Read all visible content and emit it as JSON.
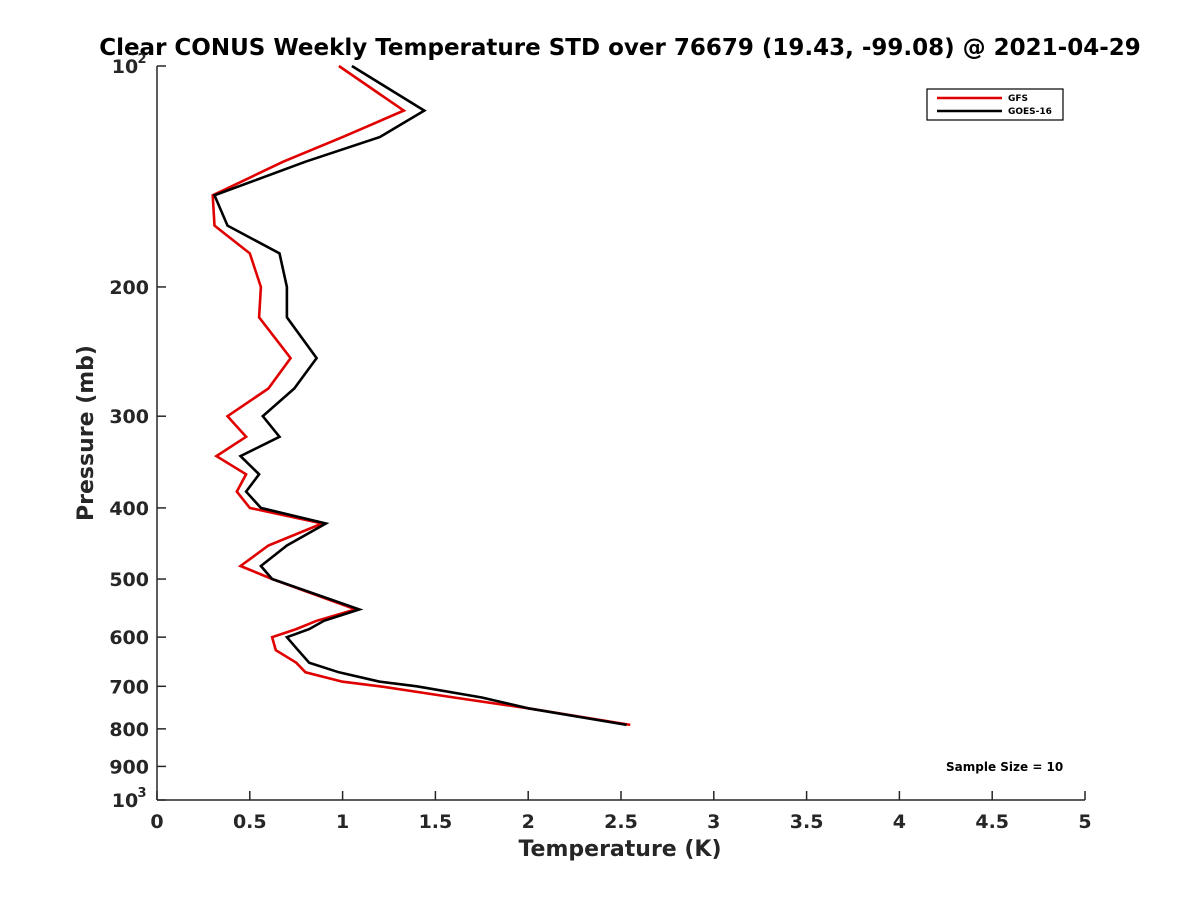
{
  "chart_data": {
    "type": "line",
    "title": "Clear CONUS Weekly Temperature STD over 76679 (19.43, -99.08) @ 2021-04-29",
    "xlabel": "Temperature (K)",
    "ylabel": "Pressure (mb)",
    "xlim": [
      0,
      5
    ],
    "ylim": [
      1000,
      100
    ],
    "y_scale": "log",
    "y_reversed": true,
    "grid": false,
    "legend_position": "top-right",
    "x_ticks": [
      0,
      0.5,
      1,
      1.5,
      2,
      2.5,
      3,
      3.5,
      4,
      4.5,
      5
    ],
    "x_tick_labels": [
      "0",
      "0.5",
      "1",
      "1.5",
      "2",
      "2.5",
      "3",
      "3.5",
      "4",
      "4.5",
      "5"
    ],
    "y_ticks": [
      200,
      300,
      400,
      500,
      600,
      700,
      800,
      900
    ],
    "y_tick_labels": [
      "200",
      "300",
      "400",
      "500",
      "600",
      "700",
      "800",
      "900"
    ],
    "y_end_labels": {
      "top_base": "10",
      "top_exp": "2",
      "bottom_base": "10",
      "bottom_exp": "3"
    },
    "annotation": "Sample Size = 10",
    "series": [
      {
        "name": "GFS",
        "color": "#e00000",
        "points": [
          [
            0.98,
            100
          ],
          [
            1.33,
            115
          ],
          [
            1.0,
            125
          ],
          [
            0.68,
            135
          ],
          [
            0.3,
            150
          ],
          [
            0.31,
            165
          ],
          [
            0.5,
            180
          ],
          [
            0.56,
            200
          ],
          [
            0.55,
            220
          ],
          [
            0.72,
            250
          ],
          [
            0.6,
            275
          ],
          [
            0.38,
            300
          ],
          [
            0.48,
            320
          ],
          [
            0.32,
            340
          ],
          [
            0.48,
            360
          ],
          [
            0.43,
            380
          ],
          [
            0.5,
            400
          ],
          [
            0.89,
            420
          ],
          [
            0.6,
            450
          ],
          [
            0.45,
            480
          ],
          [
            0.62,
            500
          ],
          [
            1.07,
            550
          ],
          [
            0.86,
            570
          ],
          [
            0.75,
            585
          ],
          [
            0.62,
            600
          ],
          [
            0.64,
            625
          ],
          [
            0.75,
            650
          ],
          [
            0.8,
            670
          ],
          [
            1.0,
            690
          ],
          [
            1.2,
            700
          ],
          [
            1.6,
            725
          ],
          [
            2.0,
            750
          ],
          [
            2.55,
            790
          ]
        ]
      },
      {
        "name": "GOES-16",
        "color": "#000000",
        "points": [
          [
            1.05,
            100
          ],
          [
            1.44,
            115
          ],
          [
            1.2,
            125
          ],
          [
            0.8,
            135
          ],
          [
            0.31,
            150
          ],
          [
            0.38,
            165
          ],
          [
            0.66,
            180
          ],
          [
            0.7,
            200
          ],
          [
            0.7,
            220
          ],
          [
            0.86,
            250
          ],
          [
            0.74,
            275
          ],
          [
            0.57,
            300
          ],
          [
            0.66,
            320
          ],
          [
            0.45,
            340
          ],
          [
            0.55,
            360
          ],
          [
            0.48,
            380
          ],
          [
            0.56,
            400
          ],
          [
            0.91,
            420
          ],
          [
            0.7,
            450
          ],
          [
            0.56,
            480
          ],
          [
            0.62,
            500
          ],
          [
            1.09,
            550
          ],
          [
            0.9,
            570
          ],
          [
            0.82,
            585
          ],
          [
            0.7,
            600
          ],
          [
            0.76,
            625
          ],
          [
            0.82,
            650
          ],
          [
            0.98,
            670
          ],
          [
            1.2,
            690
          ],
          [
            1.4,
            700
          ],
          [
            1.75,
            725
          ],
          [
            2.0,
            750
          ],
          [
            2.53,
            790
          ]
        ]
      }
    ]
  }
}
